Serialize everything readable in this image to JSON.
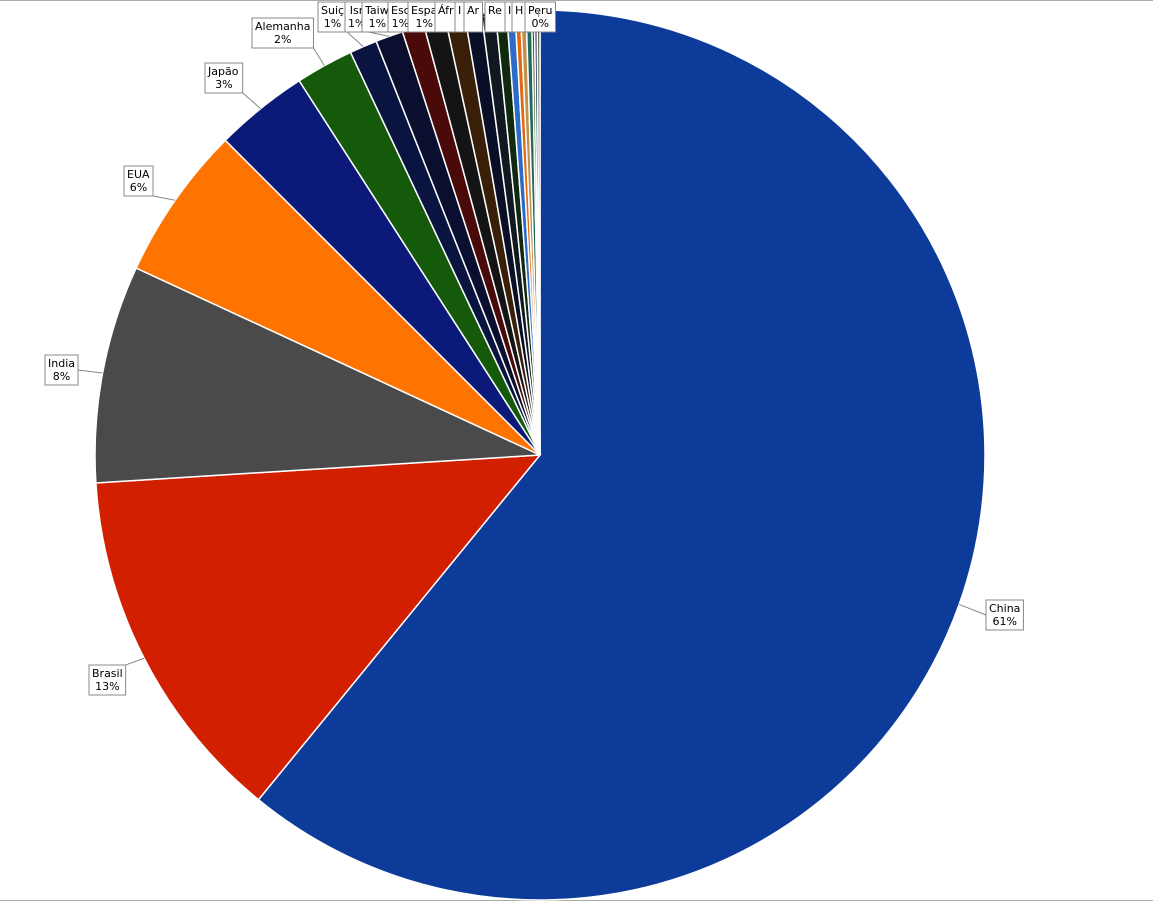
{
  "chart_data": {
    "type": "pie",
    "categories": [
      "China",
      "Brasil",
      "India",
      "EUA",
      "Japão",
      "Alemanha",
      "Suiç",
      "Isr",
      "Taiw",
      "Esc",
      "Espa",
      "Áfri",
      "I",
      "Ar",
      "Re",
      null,
      "I",
      "H",
      null,
      null,
      "Peru"
    ],
    "values": [
      60.9,
      13.1,
      7.9,
      5.6,
      3.4,
      2.1,
      1.0,
      1.0,
      0.8,
      0.8,
      0.7,
      0.6,
      0.5,
      0.4,
      0.3,
      0.2,
      0.2,
      0.2,
      0.1,
      0.1,
      0.1
    ],
    "value_labels": [
      "61%",
      "13%",
      "8%",
      "6%",
      "3%",
      "2%",
      "1%",
      "1%",
      "1%",
      "1%",
      "1%",
      null,
      null,
      null,
      null,
      null,
      null,
      null,
      null,
      null,
      "0%"
    ],
    "colors": [
      "#0d3b9a",
      "#d11f00",
      "#4a4a4a",
      "#ff7400",
      "#0b1a78",
      "#145a0a",
      "#0a1440",
      "#0a0f30",
      "#4a0a0a",
      "#141414",
      "#3a1f08",
      "#0a0f28",
      "#101820",
      "#0f2a0f",
      "#2d6bc8",
      "#e06a10",
      "#c09050",
      "#1f6a5a",
      "#3a5a2a",
      "#203050",
      "#4a6040"
    ]
  }
}
